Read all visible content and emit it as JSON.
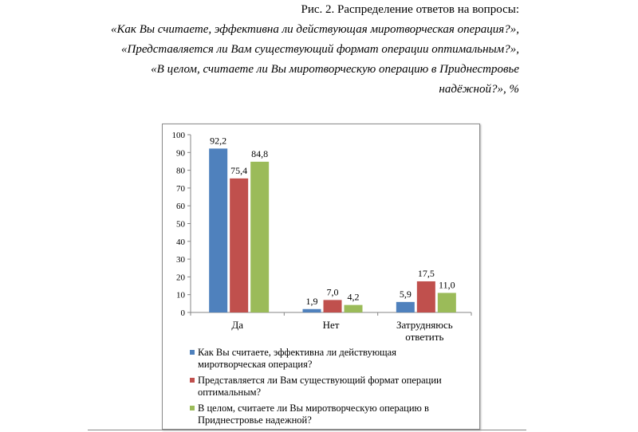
{
  "caption": {
    "line1": "Рис. 2. Распределение ответов на вопросы:",
    "line2": "«Как Вы считаете, эффективна ли действующая миротворческая операция?»,",
    "line3": "«Представляется ли Вам существующий формат операции оптимальным?»,",
    "line4": "«В целом, считаете ли Вы миротворческую операцию в Приднестровье",
    "line5": "надёжной?», %"
  },
  "chart_data": {
    "type": "bar",
    "categories": [
      "Да",
      "Нет",
      "Затрудняюсь ответить"
    ],
    "series": [
      {
        "name": "Как Вы считаете, эффективна ли действующая миротворческая операция?",
        "values": [
          92.2,
          1.9,
          5.9
        ],
        "labels": [
          "92,2",
          "1,9",
          "5,9"
        ],
        "color": "#4f81bd"
      },
      {
        "name": "Представляется ли Вам существующий формат операции оптимальным?",
        "values": [
          75.4,
          7.0,
          17.5
        ],
        "labels": [
          "75,4",
          "7,0",
          "17,5"
        ],
        "color": "#c0504d"
      },
      {
        "name": "В целом, считаете ли Вы миротворческую операцию в Приднестровье надежной?",
        "values": [
          84.8,
          4.2,
          11.0
        ],
        "labels": [
          "84,8",
          "4,2",
          "11,0"
        ],
        "color": "#9bbb59"
      }
    ],
    "yticks": [
      "0",
      "10",
      "20",
      "30",
      "40",
      "50",
      "60",
      "70",
      "80",
      "90",
      "100"
    ],
    "ylim": [
      0,
      100
    ],
    "grid": false,
    "legend": "bottom"
  }
}
